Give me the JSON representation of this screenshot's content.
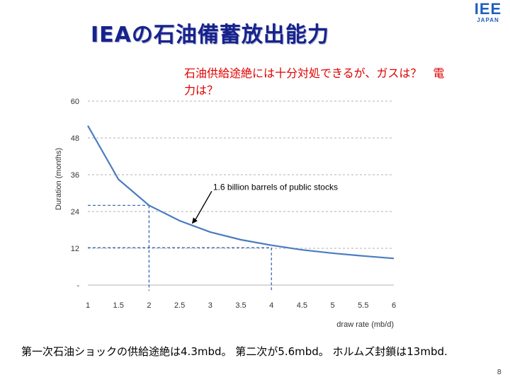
{
  "slide": {
    "title": "IEAの石油備蓄放出能力",
    "logo": {
      "main": "IEE",
      "sub": "JAPAN"
    },
    "callout": "石油供給途絶には十分対処できるが、ガスは？　電力は？",
    "bottom_note": "第一次石油ショックの供給途絶は4.3mbd。 第二次が5.6mbd。 ホルムズ封鎖は13mbd.",
    "page_number": "8"
  },
  "chart_data": {
    "type": "line",
    "xlabel": "draw rate (mb/d)",
    "ylabel": "Duration (months)",
    "xlim": [
      1,
      6
    ],
    "ylim": [
      0,
      60
    ],
    "x_ticks": [
      "1",
      "1.5",
      "2",
      "2.5",
      "3",
      "3.5",
      "4",
      "4.5",
      "5",
      "5.5",
      "6"
    ],
    "y_ticks": [
      "-",
      "12",
      "24",
      "36",
      "48",
      "60"
    ],
    "grid": "horizontal dashed",
    "series": [
      {
        "color": "#4a7cc0",
        "x": [
          1,
          1.5,
          2,
          2.5,
          3,
          3.5,
          4,
          4.5,
          5,
          5.5,
          6
        ],
        "y": [
          52,
          34.5,
          26,
          21,
          17.3,
          14.8,
          13,
          11.5,
          10.4,
          9.5,
          8.7
        ]
      }
    ],
    "annotation": {
      "text": "1.6 billion barrels of public stocks",
      "x": 2.7,
      "y": 20
    },
    "reference_lines": [
      {
        "x": 2,
        "y": 26
      },
      {
        "x": 4,
        "y": 12.2
      }
    ]
  }
}
